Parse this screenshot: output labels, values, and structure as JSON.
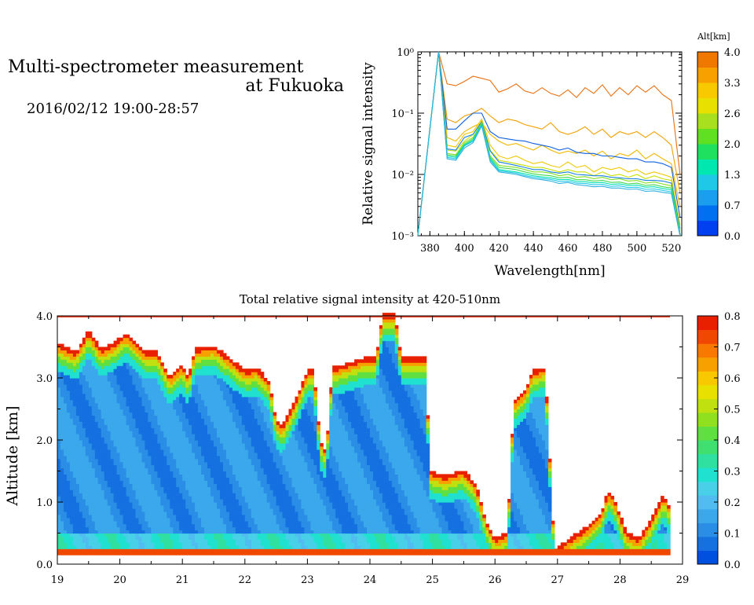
{
  "header": {
    "title_line1": "Multi-spectrometer measurement",
    "title_line2": "at Fukuoka",
    "datetime": "2016/02/12 19:00-28:57"
  },
  "chart_data": [
    {
      "type": "line",
      "xlabel": "Wavelength[nm]",
      "ylabel": "Relative signal intensity",
      "xlim": [
        373,
        526
      ],
      "ylim": [
        0.001,
        1
      ],
      "yscale": "log",
      "x_ticks": [
        "380",
        "400",
        "420",
        "440",
        "460",
        "480",
        "500",
        "520"
      ],
      "y_ticks": [
        "10⁻³",
        "10⁻²",
        "10⁻¹",
        "10⁰"
      ],
      "colorbar": {
        "label": "Alt[km]",
        "ticks": [
          "4.0",
          "3.3",
          "2.6",
          "2.0",
          "1.3",
          "0.7",
          "0.0"
        ],
        "colors": [
          "#0040f0",
          "#0070f0",
          "#1a9ff0",
          "#20c8e8",
          "#00e8b0",
          "#20e060",
          "#60e020",
          "#a8e020",
          "#e8e000",
          "#f8c800",
          "#f8a000",
          "#f07800"
        ]
      },
      "x": [
        373,
        385,
        390,
        395,
        400,
        405,
        410,
        415,
        420,
        425,
        430,
        435,
        440,
        445,
        450,
        455,
        460,
        465,
        470,
        475,
        480,
        485,
        490,
        495,
        500,
        505,
        510,
        515,
        520,
        525
      ],
      "series": [
        {
          "color": "#e87010",
          "values": [
            0.001,
            1,
            0.3,
            0.28,
            0.33,
            0.4,
            0.37,
            0.34,
            0.22,
            0.25,
            0.3,
            0.23,
            0.21,
            0.26,
            0.21,
            0.19,
            0.24,
            0.18,
            0.26,
            0.21,
            0.29,
            0.19,
            0.26,
            0.2,
            0.28,
            0.22,
            0.28,
            0.2,
            0.16,
            0.01
          ]
        },
        {
          "color": "#f0a000",
          "values": [
            0.001,
            1,
            0.08,
            0.07,
            0.09,
            0.1,
            0.12,
            0.09,
            0.07,
            0.08,
            0.075,
            0.065,
            0.06,
            0.055,
            0.07,
            0.05,
            0.045,
            0.05,
            0.06,
            0.045,
            0.055,
            0.04,
            0.05,
            0.045,
            0.05,
            0.04,
            0.05,
            0.04,
            0.03,
            0.005
          ]
        },
        {
          "color": "#f0b800",
          "values": [
            0.001,
            1,
            0.04,
            0.035,
            0.05,
            0.06,
            0.07,
            0.045,
            0.035,
            0.03,
            0.032,
            0.028,
            0.025,
            0.03,
            0.025,
            0.022,
            0.024,
            0.022,
            0.025,
            0.02,
            0.024,
            0.018,
            0.022,
            0.02,
            0.025,
            0.018,
            0.022,
            0.018,
            0.015,
            0.003
          ]
        },
        {
          "color": "#1060e0",
          "values": [
            0.001,
            1,
            0.055,
            0.055,
            0.075,
            0.1,
            0.1,
            0.05,
            0.04,
            0.038,
            0.036,
            0.035,
            0.032,
            0.03,
            0.028,
            0.025,
            0.027,
            0.023,
            0.022,
            0.022,
            0.02,
            0.02,
            0.019,
            0.018,
            0.018,
            0.016,
            0.016,
            0.015,
            0.013,
            0.002
          ]
        },
        {
          "color": "#f0c800",
          "values": [
            0.001,
            1,
            0.03,
            0.028,
            0.045,
            0.05,
            0.08,
            0.03,
            0.02,
            0.018,
            0.02,
            0.017,
            0.015,
            0.016,
            0.014,
            0.013,
            0.016,
            0.013,
            0.014,
            0.011,
            0.013,
            0.012,
            0.013,
            0.011,
            0.012,
            0.01,
            0.011,
            0.01,
            0.009,
            0.0015
          ]
        },
        {
          "color": "#c8e000",
          "values": [
            0.001,
            1,
            0.025,
            0.024,
            0.035,
            0.045,
            0.075,
            0.025,
            0.017,
            0.016,
            0.015,
            0.014,
            0.013,
            0.013,
            0.012,
            0.011,
            0.012,
            0.011,
            0.011,
            0.0095,
            0.011,
            0.0095,
            0.01,
            0.009,
            0.01,
            0.0085,
            0.0095,
            0.0085,
            0.008,
            0.0013
          ]
        },
        {
          "color": "#1a80e0",
          "values": [
            0.001,
            1,
            0.026,
            0.025,
            0.04,
            0.045,
            0.072,
            0.024,
            0.016,
            0.015,
            0.014,
            0.013,
            0.012,
            0.012,
            0.011,
            0.0105,
            0.011,
            0.01,
            0.0098,
            0.0095,
            0.0095,
            0.009,
            0.0088,
            0.0085,
            0.0085,
            0.008,
            0.008,
            0.0078,
            0.0072,
            0.0013
          ]
        },
        {
          "color": "#80e020",
          "values": [
            0.001,
            1,
            0.022,
            0.021,
            0.033,
            0.04,
            0.07,
            0.02,
            0.014,
            0.0135,
            0.013,
            0.012,
            0.011,
            0.011,
            0.0105,
            0.0095,
            0.01,
            0.009,
            0.0092,
            0.0085,
            0.009,
            0.0082,
            0.0085,
            0.0078,
            0.008,
            0.0072,
            0.0075,
            0.007,
            0.0065,
            0.0012
          ]
        },
        {
          "color": "#40d850",
          "values": [
            0.001,
            1,
            0.021,
            0.02,
            0.031,
            0.038,
            0.068,
            0.019,
            0.013,
            0.0125,
            0.012,
            0.011,
            0.0102,
            0.0098,
            0.0095,
            0.0088,
            0.009,
            0.0082,
            0.0082,
            0.0078,
            0.008,
            0.0074,
            0.0075,
            0.007,
            0.0072,
            0.0066,
            0.0068,
            0.0063,
            0.006,
            0.0011
          ]
        },
        {
          "color": "#00e0b0",
          "values": [
            0.001,
            1,
            0.02,
            0.019,
            0.03,
            0.036,
            0.066,
            0.018,
            0.012,
            0.0115,
            0.011,
            0.0102,
            0.0095,
            0.0091,
            0.0088,
            0.0082,
            0.0083,
            0.0077,
            0.0076,
            0.0073,
            0.0074,
            0.0069,
            0.007,
            0.0066,
            0.0067,
            0.0062,
            0.0063,
            0.0059,
            0.0056,
            0.001
          ]
        },
        {
          "color": "#20c8e8",
          "values": [
            0.001,
            1,
            0.019,
            0.018,
            0.029,
            0.035,
            0.065,
            0.017,
            0.0115,
            0.011,
            0.0105,
            0.0096,
            0.009,
            0.0086,
            0.0083,
            0.0077,
            0.0078,
            0.0072,
            0.0071,
            0.0068,
            0.0069,
            0.0064,
            0.0065,
            0.0061,
            0.0062,
            0.0057,
            0.0058,
            0.0055,
            0.0052,
            0.001
          ]
        },
        {
          "color": "#30b0e0",
          "values": [
            0.001,
            1,
            0.018,
            0.017,
            0.027,
            0.033,
            0.062,
            0.016,
            0.011,
            0.0105,
            0.01,
            0.0092,
            0.0085,
            0.0082,
            0.0078,
            0.0071,
            0.0074,
            0.0068,
            0.0066,
            0.0063,
            0.0064,
            0.006,
            0.006,
            0.0057,
            0.0058,
            0.0053,
            0.0054,
            0.0051,
            0.0049,
            0.001
          ]
        }
      ]
    },
    {
      "type": "heatmap",
      "title": "Total relative signal intensity at 420-510nm",
      "ylabel": "Altitude [km]",
      "xlim": [
        19,
        29
      ],
      "ylim": [
        0,
        4
      ],
      "x_ticks": [
        "19",
        "20",
        "21",
        "22",
        "23",
        "24",
        "25",
        "26",
        "27",
        "28",
        "29"
      ],
      "y_ticks": [
        "0.0",
        "1.0",
        "2.0",
        "3.0",
        "4.0"
      ],
      "colorbar": {
        "range": [
          0,
          0.8
        ],
        "ticks": [
          "0.0",
          "0.1",
          "0.2",
          "0.3",
          "0.4",
          "0.5",
          "0.6",
          "0.7",
          "0.8"
        ],
        "colors": [
          "#0050e0",
          "#1570e0",
          "#2a8ee6",
          "#3ba8ec",
          "#50bcf0",
          "#48d0e8",
          "#20e0d0",
          "#30e0a0",
          "#40e070",
          "#60e040",
          "#90e020",
          "#c0e010",
          "#e8e000",
          "#f8c800",
          "#f8a000",
          "#f87800",
          "#f04800",
          "#e82000"
        ]
      },
      "cloud_top_km": [
        [
          19.0,
          3.55
        ],
        [
          19.3,
          3.4
        ],
        [
          19.5,
          3.75
        ],
        [
          19.7,
          3.45
        ],
        [
          19.9,
          3.55
        ],
        [
          20.1,
          3.7
        ],
        [
          20.4,
          3.4
        ],
        [
          20.6,
          3.4
        ],
        [
          20.8,
          3.0
        ],
        [
          21.0,
          3.2
        ],
        [
          21.1,
          3.0
        ],
        [
          21.2,
          3.45
        ],
        [
          21.5,
          3.5
        ],
        [
          21.7,
          3.35
        ],
        [
          22.0,
          3.1
        ],
        [
          22.2,
          3.15
        ],
        [
          22.4,
          2.9
        ],
        [
          22.5,
          2.3
        ],
        [
          22.6,
          2.2
        ],
        [
          22.8,
          2.6
        ],
        [
          23.0,
          3.1
        ],
        [
          23.1,
          3.1
        ],
        [
          23.2,
          2.0
        ],
        [
          23.3,
          1.8
        ],
        [
          23.4,
          3.15
        ],
        [
          23.6,
          3.2
        ],
        [
          23.9,
          3.3
        ],
        [
          24.1,
          3.3
        ],
        [
          24.2,
          4.0
        ],
        [
          24.4,
          4.0
        ],
        [
          24.5,
          3.3
        ],
        [
          24.7,
          3.3
        ],
        [
          24.9,
          3.3
        ],
        [
          24.95,
          1.5
        ],
        [
          25.2,
          1.4
        ],
        [
          25.5,
          1.5
        ],
        [
          25.7,
          1.25
        ],
        [
          25.85,
          0.7
        ],
        [
          26.0,
          0.4
        ],
        [
          26.2,
          0.5
        ],
        [
          26.3,
          2.6
        ],
        [
          26.5,
          2.8
        ],
        [
          26.6,
          3.1
        ],
        [
          26.8,
          3.15
        ],
        [
          26.95,
          0.2
        ],
        [
          27.2,
          0.4
        ],
        [
          27.5,
          0.6
        ],
        [
          27.7,
          0.8
        ],
        [
          27.8,
          1.15
        ],
        [
          27.9,
          1.05
        ],
        [
          28.1,
          0.5
        ],
        [
          28.3,
          0.4
        ],
        [
          28.5,
          0.7
        ],
        [
          28.7,
          1.1
        ],
        [
          28.8,
          0.9
        ]
      ]
    }
  ]
}
